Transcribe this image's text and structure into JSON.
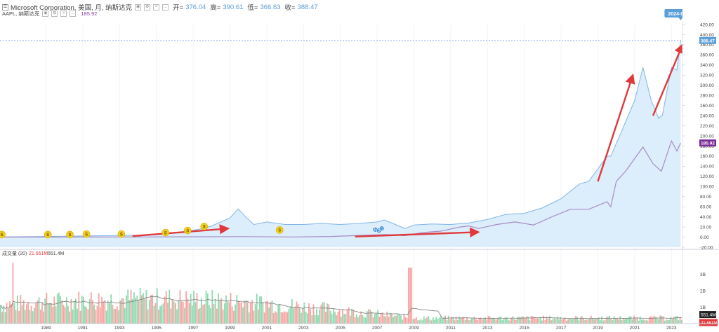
{
  "header": {
    "symbol_line": "Microsoft Corporation, 美国, 月, 纳斯达克",
    "open_label": "开=",
    "open_value": "376.04",
    "high_label": "高=",
    "high_value": "390.61",
    "low_label": "低=",
    "low_value": "366.63",
    "close_label": "收=",
    "close_value": "388.47",
    "compare_label": "AAPL, 纳斯达克",
    "compare_value": "185.92",
    "menu_icon": "menu-icon"
  },
  "volume_legend": {
    "label": "成交量 (20)",
    "value1": "21.661M",
    "value2": "551.4M"
  },
  "colors": {
    "msft_line": "#7fb5e6",
    "msft_fill": "#dcedfb",
    "aapl_line": "#a98bc6",
    "arrow": "#e0393b",
    "vol_up": "#8fd9b0",
    "vol_down": "#f6a5a2",
    "vol_ma": "#888888",
    "price_tag": "#5b9fd9",
    "aapl_tag": "#7a2a96",
    "dividend": "#f0cf1f"
  },
  "chart_data": [
    {
      "type": "area",
      "title": "Microsoft Corporation, 美国, 月, 纳斯达克",
      "xlabel": "",
      "ylabel": "",
      "ylim": [
        -20,
        420
      ],
      "y_ticks": [
        "-20.00",
        "0.00",
        "20.00",
        "40.00",
        "60.00",
        "80.00",
        "100.00",
        "120.00",
        "140.00",
        "160.00",
        "180.00",
        "200.00",
        "220.00",
        "240.00",
        "260.00",
        "280.00",
        "300.00",
        "320.00",
        "340.00",
        "360.00",
        "380.00",
        "400.00",
        "420.00"
      ],
      "x_ticks": [
        "1989",
        "1991",
        "1993",
        "1995",
        "1997",
        "1999",
        "2001",
        "2003",
        "2005",
        "2007",
        "2009",
        "2011",
        "2013",
        "2015",
        "2017",
        "2019",
        "2021",
        "2023"
      ],
      "series": [
        {
          "name": "Microsoft Corporation",
          "x": [
            1987.0,
            1989.0,
            1991.0,
            1993.0,
            1995.0,
            1996.0,
            1997.0,
            1998.0,
            1998.5,
            1999.0,
            1999.5,
            1999.95,
            2000.3,
            2000.8,
            2001.5,
            2002.5,
            2003.5,
            2004.5,
            2005.5,
            2006.5,
            2007.5,
            2007.9,
            2008.5,
            2009.0,
            2009.5,
            2010.5,
            2011.5,
            2012.5,
            2013.5,
            2014.5,
            2015.5,
            2016.5,
            2017.5,
            2018.5,
            2019.0,
            2019.5,
            2020.0,
            2020.2,
            2020.8,
            2021.5,
            2021.95,
            2022.4,
            2022.8,
            2023.0,
            2023.5,
            2023.8,
            2024.0
          ],
          "values": [
            0.5,
            1,
            2,
            3,
            4,
            6,
            10,
            17,
            22,
            30,
            38,
            56,
            42,
            25,
            30,
            25,
            25,
            27,
            25,
            27,
            30,
            34,
            25,
            17,
            24,
            26,
            25,
            28,
            35,
            45,
            47,
            58,
            76,
            105,
            110,
            135,
            160,
            160,
            210,
            270,
            335,
            270,
            235,
            240,
            335,
            330,
            388.47
          ]
        },
        {
          "name": "AAPL",
          "x": [
            1987.0,
            1995.0,
            2000.0,
            2003.0,
            2005.0,
            2007.0,
            2008.0,
            2009.0,
            2010.0,
            2011.0,
            2012.0,
            2012.5,
            2013.0,
            2014.0,
            2015.0,
            2016.0,
            2017.0,
            2018.0,
            2019.0,
            2020.0,
            2020.2,
            2020.5,
            2021.0,
            2021.95,
            2022.5,
            2022.95,
            2023.5,
            2023.8,
            2024.0
          ],
          "values": [
            0.1,
            0.3,
            1,
            0.3,
            1.3,
            4,
            5,
            3,
            9,
            12,
            20,
            22,
            17,
            25,
            30,
            24,
            40,
            55,
            55,
            70,
            60,
            110,
            130,
            178,
            145,
            130,
            190,
            170,
            185.92
          ]
        }
      ],
      "last_date": "2024-01-01",
      "last_value": "388.47",
      "aapl_last_value": "185.92",
      "dividend_markers": [
        {
          "x": 1987.1,
          "y": 5,
          "label": "S"
        },
        {
          "x": 1989.6,
          "y": 5,
          "label": "S"
        },
        {
          "x": 1990.8,
          "y": 5,
          "label": "S"
        },
        {
          "x": 1991.7,
          "y": 6,
          "label": "S"
        },
        {
          "x": 1993.6,
          "y": 6,
          "label": "S"
        },
        {
          "x": 1996.0,
          "y": 9,
          "label": "S"
        },
        {
          "x": 1997.2,
          "y": 13,
          "label": "S"
        },
        {
          "x": 1998.1,
          "y": 21,
          "label": "S"
        },
        {
          "x": 2002.2,
          "y": 14,
          "label": "S"
        }
      ],
      "event_markers": [
        {
          "x": 2007.4,
          "y": 15,
          "label": "E"
        },
        {
          "x": 2007.6,
          "y": 13,
          "label": "D"
        },
        {
          "x": 2007.75,
          "y": 17,
          "label": "D"
        }
      ],
      "trend_arrows": [
        {
          "from": [
            1994.2,
            2
          ],
          "to": [
            1999.4,
            17
          ]
        },
        {
          "from": [
            2006.3,
            1
          ],
          "to": [
            2013.0,
            10
          ]
        },
        {
          "from": [
            2019.5,
            110
          ],
          "to": [
            2021.4,
            320
          ]
        },
        {
          "from": [
            2022.5,
            240
          ],
          "to": [
            2024.1,
            380
          ]
        }
      ]
    },
    {
      "type": "bar",
      "title": "成交量 (20)",
      "ylim": [
        0,
        4
      ],
      "y_ticks": [
        "1B",
        "2B",
        "3B"
      ],
      "latest_volume": "551.4M",
      "latest_ma": "21.661M"
    }
  ]
}
